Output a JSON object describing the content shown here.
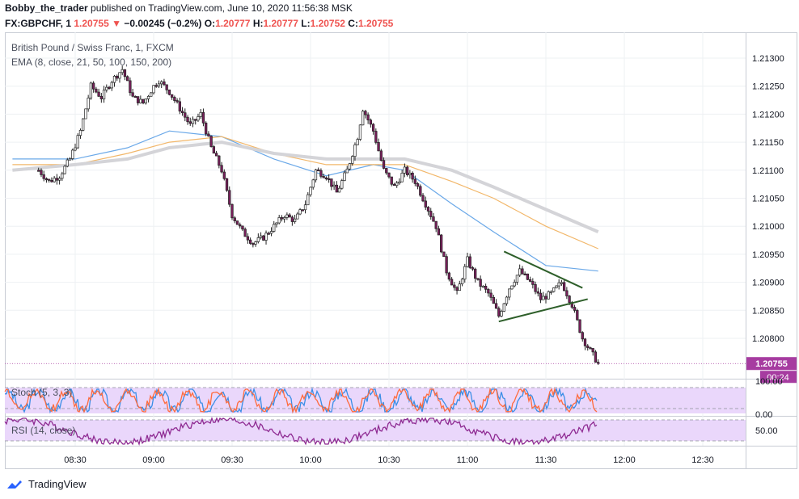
{
  "header": {
    "publisher": "Bobby_the_trader",
    "published_text": "published on TradingView.com, June 10, 2020 11:56:38 MSK",
    "symbol": "FX:GBPCHF, 1",
    "last": "1.20755",
    "change": "−0.00245 (−0.2%)",
    "o_label": "O:",
    "o": "1.20777",
    "h_label": "H:",
    "h": "1.20777",
    "l_label": "L:",
    "l": "1.20752",
    "c_label": "C:",
    "c": "1.20755"
  },
  "legend": {
    "instrument": "British Pound / Swiss Franc, 1, FXCM",
    "ema": "EMA (8, close, 21, 50, 100, 150, 200)"
  },
  "footer": {
    "brand": "TradingView"
  },
  "colors": {
    "up": "#ffffff",
    "down": "#7a1f5c",
    "wick": "#222222",
    "ema_blue": "#6aa8e8",
    "ema_orange": "#f2b76a",
    "ema_gray": "#d4d4d8",
    "triangle": "#2e5f2a",
    "price_tag": "#a63ca0",
    "stoch_k": "#3a8ee6",
    "stoch_d": "#ff6b3d",
    "rsi": "#8e2a92",
    "osc_fill": "#ead7fb"
  },
  "chart_data": {
    "type": "candlestick",
    "title": "British Pound / Swiss Franc, 1, FXCM",
    "ylim": [
      1.2075,
      1.2134
    ],
    "y_ticks": [
      "1.21300",
      "1.21250",
      "1.21200",
      "1.21150",
      "1.21100",
      "1.21050",
      "1.21000",
      "1.20950",
      "1.20900",
      "1.20850",
      "1.20800"
    ],
    "x_ticks": [
      "08:30",
      "09:00",
      "09:30",
      "10:00",
      "10:30",
      "11:00",
      "11:30",
      "12:00",
      "12:30"
    ],
    "last_price_label": "1.20755",
    "countdown_label": "00:24",
    "close_path": [
      [
        "08:16",
        1.211
      ],
      [
        "08:20",
        1.2108
      ],
      [
        "08:24",
        1.2109
      ],
      [
        "08:28",
        1.2112
      ],
      [
        "08:32",
        1.2117
      ],
      [
        "08:36",
        1.2125
      ],
      [
        "08:40",
        1.2123
      ],
      [
        "08:44",
        1.2126
      ],
      [
        "08:48",
        1.2128
      ],
      [
        "08:52",
        1.2123
      ],
      [
        "08:56",
        1.2122
      ],
      [
        "09:00",
        1.2125
      ],
      [
        "09:02",
        1.2126
      ],
      [
        "09:06",
        1.2124
      ],
      [
        "09:10",
        1.2121
      ],
      [
        "09:14",
        1.2118
      ],
      [
        "09:18",
        1.212
      ],
      [
        "09:22",
        1.2114
      ],
      [
        "09:26",
        1.211
      ],
      [
        "09:30",
        1.2102
      ],
      [
        "09:34",
        1.2099
      ],
      [
        "09:38",
        1.2097
      ],
      [
        "09:42",
        1.2098
      ],
      [
        "09:46",
        1.21
      ],
      [
        "09:50",
        1.2102
      ],
      [
        "09:54",
        1.2101
      ],
      [
        "09:58",
        1.2104
      ],
      [
        "10:02",
        1.211
      ],
      [
        "10:06",
        1.2109
      ],
      [
        "10:10",
        1.2106
      ],
      [
        "10:14",
        1.211
      ],
      [
        "10:18",
        1.2116
      ],
      [
        "10:20",
        1.2121
      ],
      [
        "10:24",
        1.2117
      ],
      [
        "10:28",
        1.211
      ],
      [
        "10:32",
        1.2107
      ],
      [
        "10:36",
        1.211
      ],
      [
        "10:40",
        1.2108
      ],
      [
        "10:44",
        1.2104
      ],
      [
        "10:48",
        1.21
      ],
      [
        "10:52",
        1.2092
      ],
      [
        "10:56",
        1.2088
      ],
      [
        "11:00",
        1.2094
      ],
      [
        "11:04",
        1.209
      ],
      [
        "11:08",
        1.2088
      ],
      [
        "11:12",
        1.2084
      ],
      [
        "11:16",
        1.2089
      ],
      [
        "11:20",
        1.2092
      ],
      [
        "11:24",
        1.209
      ],
      [
        "11:28",
        1.2087
      ],
      [
        "11:32",
        1.2088
      ],
      [
        "11:36",
        1.209
      ],
      [
        "11:40",
        1.2086
      ],
      [
        "11:44",
        1.208
      ],
      [
        "11:48",
        1.2077
      ],
      [
        "11:50",
        1.20755
      ]
    ],
    "ema_lines": [
      {
        "name": "EMA 50",
        "color_key": "ema_blue",
        "points": [
          [
            "08:06",
            1.2112
          ],
          [
            "08:30",
            1.2112
          ],
          [
            "08:50",
            1.2114
          ],
          [
            "09:06",
            1.2117
          ],
          [
            "09:26",
            1.2116
          ],
          [
            "09:46",
            1.2112
          ],
          [
            "10:06",
            1.2109
          ],
          [
            "10:24",
            1.2111
          ],
          [
            "10:36",
            1.211
          ],
          [
            "10:54",
            1.2104
          ],
          [
            "11:10",
            1.2099
          ],
          [
            "11:30",
            1.2093
          ],
          [
            "11:50",
            1.2092
          ]
        ]
      },
      {
        "name": "EMA 100",
        "color_key": "ema_orange",
        "points": [
          [
            "08:06",
            1.2111
          ],
          [
            "08:30",
            1.2111
          ],
          [
            "08:50",
            1.2113
          ],
          [
            "09:06",
            1.2115
          ],
          [
            "09:26",
            1.2116
          ],
          [
            "09:46",
            1.2113
          ],
          [
            "10:06",
            1.2111
          ],
          [
            "10:24",
            1.2111
          ],
          [
            "10:36",
            1.2111
          ],
          [
            "10:54",
            1.2108
          ],
          [
            "11:10",
            1.2105
          ],
          [
            "11:30",
            1.21
          ],
          [
            "11:50",
            1.2096
          ]
        ]
      },
      {
        "name": "EMA 200",
        "color_key": "ema_gray",
        "points": [
          [
            "08:06",
            1.211
          ],
          [
            "08:30",
            1.2111
          ],
          [
            "08:50",
            1.2112
          ],
          [
            "09:06",
            1.2114
          ],
          [
            "09:26",
            1.2115
          ],
          [
            "09:46",
            1.2113
          ],
          [
            "10:06",
            1.2112
          ],
          [
            "10:24",
            1.2112
          ],
          [
            "10:36",
            1.2112
          ],
          [
            "10:54",
            1.211
          ],
          [
            "11:10",
            1.2107
          ],
          [
            "11:30",
            1.2103
          ],
          [
            "11:50",
            1.2099
          ]
        ]
      }
    ],
    "triangle": [
      [
        [
          "11:14",
          1.20955
        ],
        [
          "11:44",
          1.2089
        ]
      ],
      [
        [
          "11:12",
          1.2083
        ],
        [
          "11:46",
          1.2087
        ]
      ]
    ],
    "stochastic": {
      "label": "Stoch (5, 3, 3)",
      "ticks": [
        "100.00",
        "0.00"
      ]
    },
    "rsi": {
      "label": "RSI (14, close)",
      "ticks": [
        "50.00"
      ]
    }
  }
}
